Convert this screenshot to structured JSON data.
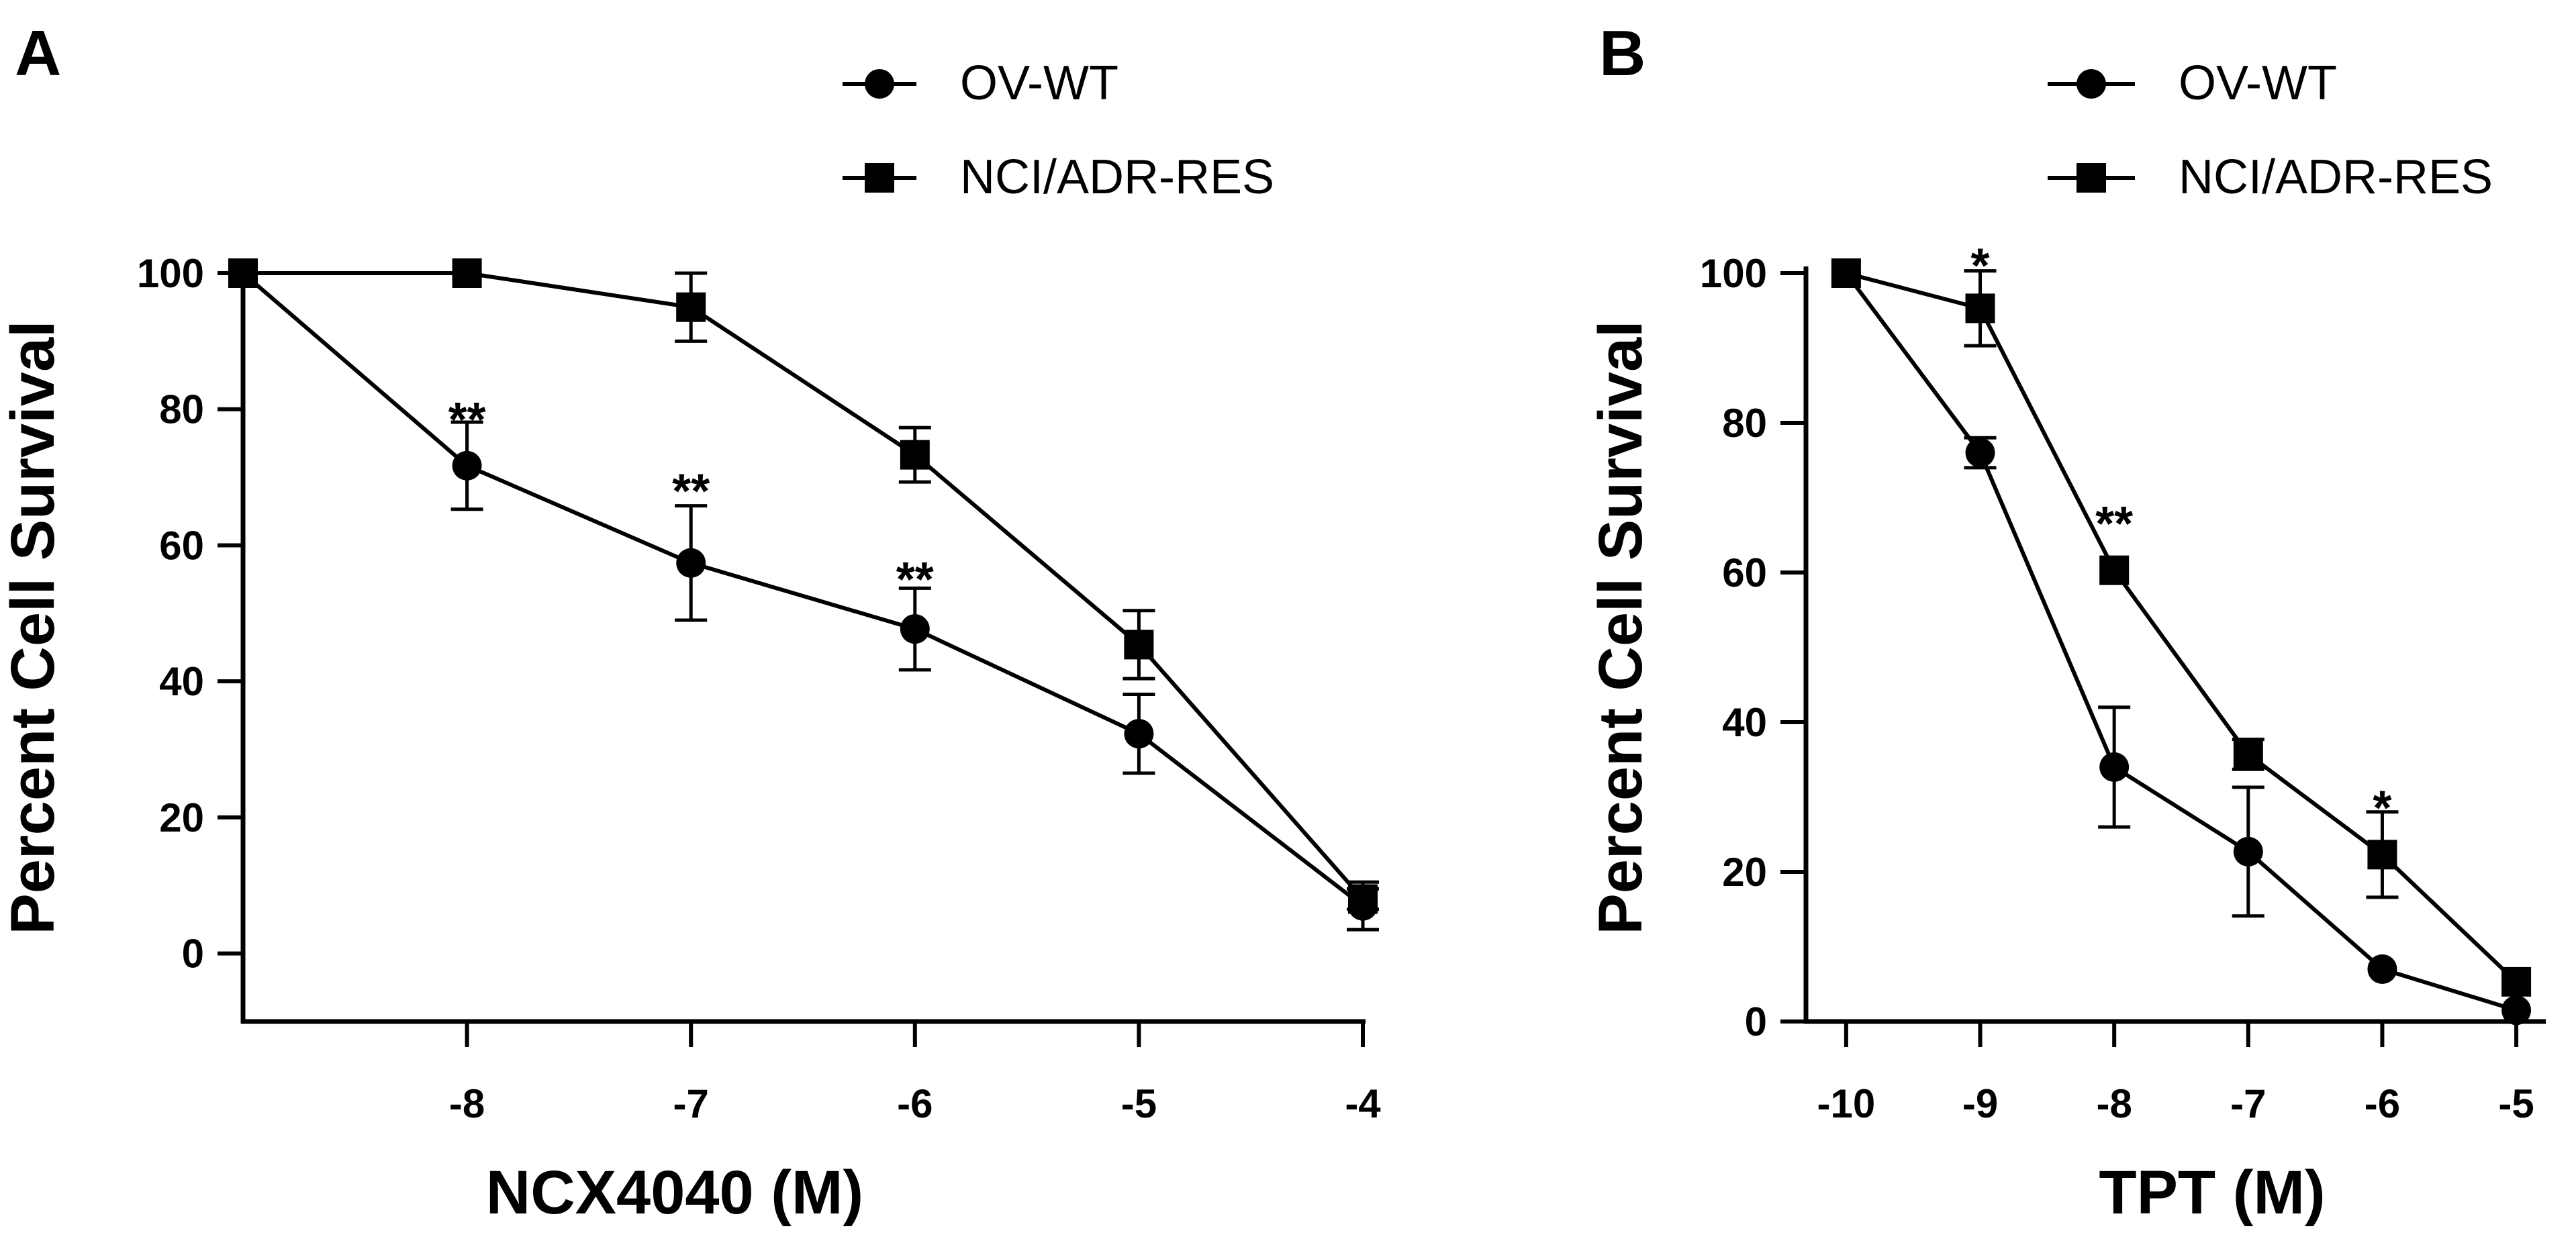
{
  "chart_data": [
    {
      "type": "line",
      "panel": "A",
      "xlabel": "NCX4040 (M)",
      "ylabel": "Percent Cell Survival",
      "xlim": [
        -9,
        -4
      ],
      "ylim": [
        -10,
        100
      ],
      "x_ticks": [
        "-8",
        "-7",
        "-6",
        "-5",
        "-4"
      ],
      "y_ticks": [
        "0",
        "20",
        "40",
        "60",
        "80",
        "100"
      ],
      "legend": [
        "OV-WT",
        "NCI/ADR-RES"
      ],
      "series": [
        {
          "name": "OV-WT",
          "marker": "circle",
          "x": [
            -9,
            -8,
            -7,
            -6,
            -5,
            -4
          ],
          "y": [
            100,
            71.7,
            57.4,
            47.7,
            32.3,
            7
          ],
          "err": [
            0,
            6.4,
            8.4,
            6.0,
            5.8,
            3.5
          ]
        },
        {
          "name": "NCI/ADR-RES",
          "marker": "square",
          "x": [
            -9,
            -8,
            -7,
            -6,
            -5,
            -4
          ],
          "y": [
            100,
            100,
            95,
            73.3,
            45.4,
            8
          ],
          "err": [
            0,
            0,
            5,
            4,
            5,
            1.5
          ]
        }
      ],
      "annotations": [
        {
          "text": "**",
          "x": -8,
          "y": 79
        },
        {
          "text": "**",
          "x": -7,
          "y": 68.5
        },
        {
          "text": "**",
          "x": -6,
          "y": 55.5
        }
      ]
    },
    {
      "type": "line",
      "panel": "B",
      "xlabel": "TPT (M)",
      "ylabel": "Percent Cell Survival",
      "xlim": [
        -10.3,
        -4.8
      ],
      "ylim": [
        0,
        100
      ],
      "x_ticks": [
        "-10",
        "-9",
        "-8",
        "-7",
        "-6",
        "-5"
      ],
      "y_ticks": [
        "0",
        "20",
        "40",
        "60",
        "80",
        "100"
      ],
      "legend": [
        "OV-WT",
        "NCI/ADR-RES"
      ],
      "series": [
        {
          "name": "OV-WT",
          "marker": "circle",
          "x": [
            -10,
            -9,
            -8,
            -7,
            -6,
            -5
          ],
          "y": [
            100,
            76,
            34,
            22.7,
            7,
            1.5
          ],
          "err": [
            0,
            2,
            8,
            8.6,
            0,
            0
          ]
        },
        {
          "name": "NCI/ADR-RES",
          "marker": "square",
          "x": [
            -10,
            -9,
            -8,
            -7,
            -6,
            -5
          ],
          "y": [
            100,
            95.3,
            60.3,
            35.7,
            22.3,
            5.3
          ],
          "err": [
            0,
            5,
            0,
            2,
            5.7,
            0
          ]
        }
      ],
      "annotations": [
        {
          "text": "*",
          "x": -9,
          "y": 101.5
        },
        {
          "text": "**",
          "x": -8,
          "y": 67
        },
        {
          "text": "*",
          "x": -6,
          "y": 29
        }
      ]
    }
  ]
}
